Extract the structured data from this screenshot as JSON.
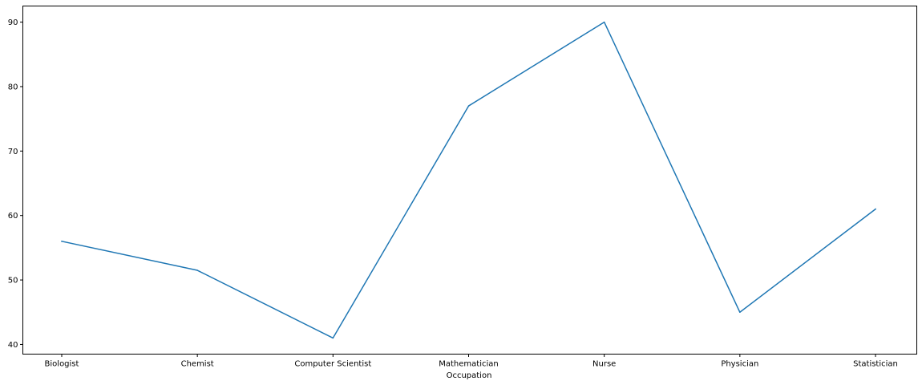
{
  "chart_data": {
    "type": "line",
    "title": "",
    "xlabel": "Occupation",
    "ylabel": "",
    "categories": [
      "Biologist",
      "Chemist",
      "Computer Scientist",
      "Mathematician",
      "Nurse",
      "Physician",
      "Statistician"
    ],
    "series": [
      {
        "name": "",
        "color": "#1f77b4",
        "values": [
          56,
          51.5,
          41,
          77,
          90,
          45,
          61
        ]
      }
    ],
    "ylim": [
      38.5,
      92.5
    ],
    "yticks": [
      40,
      50,
      60,
      70,
      80,
      90
    ],
    "grid": false,
    "legend": "none"
  }
}
